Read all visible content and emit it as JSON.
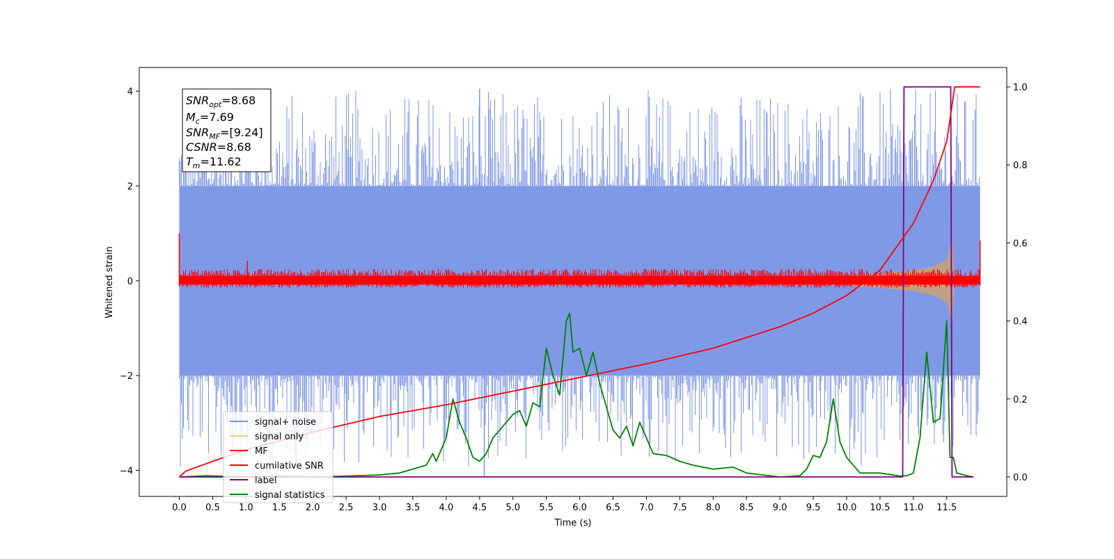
{
  "chart_data": {
    "type": "line",
    "title": "",
    "xlabel": "Time (s)",
    "ylabel": "Whitened strain",
    "xlim": [
      -0.6,
      12.4
    ],
    "ylim": [
      -4.55,
      4.5
    ],
    "y2lim": [
      -0.05,
      1.05
    ],
    "x_ticks": [
      "0.0",
      "0.5",
      "1.0",
      "1.5",
      "2.0",
      "2.5",
      "3.0",
      "3.5",
      "4.0",
      "4.5",
      "5.0",
      "5.5",
      "6.0",
      "6.5",
      "7.0",
      "7.5",
      "8.0",
      "8.5",
      "9.0",
      "9.5",
      "10.0",
      "10.5",
      "11.0",
      "11.5"
    ],
    "y_ticks": [
      "4",
      "2",
      "0",
      "−2",
      "−4"
    ],
    "y2_ticks": [
      "1.0",
      "0.8",
      "0.6",
      "0.4",
      "0.2",
      "0.0"
    ],
    "grid": false,
    "legend_position": "lower-left",
    "info_box": {
      "lines": [
        {
          "name": "SNR",
          "sub": "opt",
          "value": "=8.68"
        },
        {
          "name": "M",
          "sub": "c",
          "value": "=7.69"
        },
        {
          "name": "SNR",
          "sub": "MF",
          "value": "=[9.24]"
        },
        {
          "name": "CSNR",
          "sub": "",
          "value": "=8.68"
        },
        {
          "name": "T",
          "sub": "m",
          "value": "=11.62"
        }
      ]
    },
    "series": [
      {
        "name": "signal+ noise",
        "color": "#7893e6",
        "axis": "left",
        "description_values": {
          "x_range": [
            0.0,
            12.0
          ],
          "amplitude_band": [
            -2.0,
            2.0
          ],
          "max_peak": 4.05,
          "min_peak": -4.15
        }
      },
      {
        "name": "signal only",
        "color": "#f5c97a",
        "axis": "left",
        "chirp_envelope": {
          "x": [
            10.0,
            10.5,
            11.0,
            11.3,
            11.5,
            11.58,
            11.62
          ],
          "amplitude": [
            0.1,
            0.15,
            0.22,
            0.3,
            0.45,
            0.9,
            0.0
          ]
        }
      },
      {
        "name": "MF",
        "color": "#ff0000",
        "axis": "left",
        "description_values": {
          "x_range": [
            0.0,
            12.0
          ],
          "amplitude_band": [
            -0.15,
            0.25
          ],
          "start_value": 1.0,
          "end_value": 0.85,
          "max_peak": 0.42
        }
      },
      {
        "name": "cumilative SNR",
        "color": "#ff0000",
        "axis": "right",
        "x": [
          0.0,
          0.1,
          0.5,
          1.0,
          2.0,
          3.0,
          4.0,
          5.0,
          6.0,
          7.0,
          8.0,
          9.0,
          9.5,
          10.0,
          10.5,
          11.0,
          11.3,
          11.5,
          11.62,
          12.0
        ],
        "values": [
          0.0,
          0.015,
          0.04,
          0.07,
          0.115,
          0.155,
          0.185,
          0.22,
          0.255,
          0.29,
          0.33,
          0.385,
          0.42,
          0.465,
          0.53,
          0.65,
          0.76,
          0.86,
          1.0,
          1.0
        ]
      },
      {
        "name": "label",
        "color": "#800080",
        "axis": "right",
        "x": [
          0.0,
          10.84,
          10.86,
          11.56,
          11.58,
          11.9
        ],
        "values": [
          0.0,
          0.0,
          1.0,
          1.0,
          0.0,
          0.0
        ]
      },
      {
        "name": "signal statistics",
        "color": "#008000",
        "axis": "right",
        "x": [
          0.0,
          0.4,
          1.0,
          1.5,
          2.0,
          2.5,
          3.0,
          3.3,
          3.5,
          3.7,
          3.8,
          3.85,
          3.9,
          4.0,
          4.1,
          4.2,
          4.3,
          4.4,
          4.5,
          4.6,
          4.7,
          4.8,
          5.0,
          5.1,
          5.2,
          5.3,
          5.4,
          5.5,
          5.6,
          5.7,
          5.8,
          5.85,
          5.9,
          6.0,
          6.1,
          6.2,
          6.3,
          6.4,
          6.5,
          6.6,
          6.7,
          6.8,
          6.9,
          7.0,
          7.1,
          7.3,
          7.5,
          7.7,
          8.0,
          8.3,
          8.5,
          9.0,
          9.3,
          9.4,
          9.5,
          9.6,
          9.7,
          9.8,
          9.9,
          10.0,
          10.2,
          10.5,
          10.8,
          10.9,
          11.0,
          11.1,
          11.2,
          11.3,
          11.4,
          11.5,
          11.55,
          11.6,
          11.65,
          11.8,
          11.9
        ],
        "values": [
          0.0,
          0.003,
          0.0,
          0.002,
          0.0,
          0.002,
          0.005,
          0.01,
          0.02,
          0.03,
          0.06,
          0.04,
          0.06,
          0.1,
          0.2,
          0.14,
          0.1,
          0.05,
          0.04,
          0.06,
          0.1,
          0.12,
          0.16,
          0.17,
          0.13,
          0.19,
          0.18,
          0.33,
          0.26,
          0.21,
          0.4,
          0.42,
          0.32,
          0.33,
          0.26,
          0.32,
          0.24,
          0.18,
          0.12,
          0.1,
          0.13,
          0.08,
          0.14,
          0.1,
          0.06,
          0.055,
          0.04,
          0.03,
          0.02,
          0.025,
          0.01,
          0.0,
          0.003,
          0.02,
          0.055,
          0.05,
          0.09,
          0.2,
          0.09,
          0.05,
          0.01,
          0.01,
          0.002,
          0.003,
          0.01,
          0.1,
          0.32,
          0.14,
          0.15,
          0.4,
          0.05,
          0.05,
          0.01,
          0.003,
          0.0
        ]
      }
    ]
  }
}
